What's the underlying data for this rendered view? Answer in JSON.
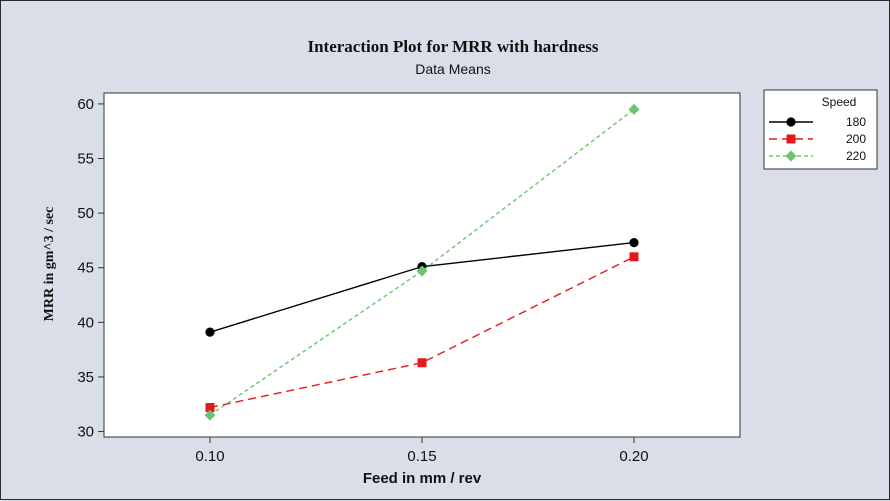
{
  "chart_data": {
    "type": "line",
    "title": "Interaction Plot for MRR with hardness",
    "subtitle": "Data Means",
    "xlabel": "Feed in mm / rev",
    "ylabel": "MRR in gm^3 / sec",
    "categories": [
      "0.10",
      "0.15",
      "0.20"
    ],
    "x": [
      0.1,
      0.15,
      0.2
    ],
    "xlim": [
      0.075,
      0.225
    ],
    "ylim": [
      29.5,
      61
    ],
    "yticks": [
      30,
      35,
      40,
      45,
      50,
      55,
      60
    ],
    "grid": false,
    "legend": {
      "title": "Speed",
      "placement": "right"
    },
    "series": [
      {
        "name": "180",
        "values": [
          39.1,
          45.1,
          47.3
        ],
        "color": "#000000",
        "marker": "circle",
        "dash": "solid"
      },
      {
        "name": "200",
        "values": [
          32.2,
          36.3,
          46.0
        ],
        "color": "#e31a1c",
        "marker": "square",
        "dash": "dashed"
      },
      {
        "name": "220",
        "values": [
          31.5,
          44.7,
          59.5
        ],
        "color": "#6cc56c",
        "marker": "diamond",
        "dash": "dotted"
      }
    ]
  }
}
